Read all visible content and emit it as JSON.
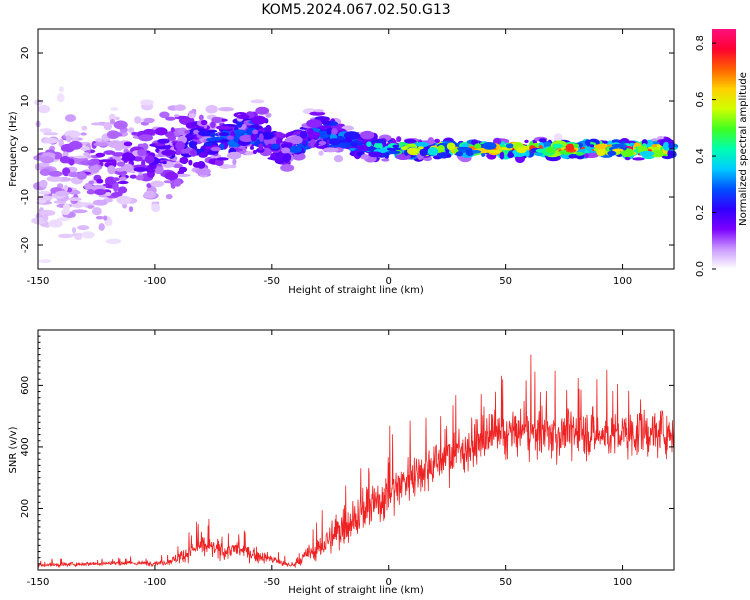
{
  "figure": {
    "title": "KOM5.2024.067.02.50.G13"
  },
  "chart_data": [
    {
      "type": "heatmap",
      "title": "KOM5.2024.067.02.50.G13",
      "xlabel": "Height of straight line (km)",
      "ylabel": "Frequency (Hz)",
      "xlim": [
        -150,
        122
      ],
      "ylim": [
        -25,
        25
      ],
      "x_ticks": [
        -150,
        -100,
        -50,
        0,
        50,
        100
      ],
      "y_ticks": [
        -20,
        -10,
        0,
        10,
        20
      ],
      "colorbar": {
        "label": "Normalized spectral amplitude",
        "range": [
          0.0,
          0.85
        ],
        "ticks": [
          0.0,
          0.2,
          0.4,
          0.6,
          0.8
        ],
        "colormap": [
          "#ffffff",
          "#cc99ff",
          "#7a00ff",
          "#3000ff",
          "#0050ff",
          "#00ccff",
          "#00ffb0",
          "#40ff20",
          "#d0ff00",
          "#ffd000",
          "#ff6000",
          "#ff0030",
          "#ff1080"
        ]
      },
      "ridge": [
        {
          "x": -150,
          "y": -3,
          "spread": 12,
          "amp": 0.08
        },
        {
          "x": -125,
          "y": -5,
          "spread": 10,
          "amp": 0.12
        },
        {
          "x": -100,
          "y": -2,
          "spread": 8,
          "amp": 0.15
        },
        {
          "x": -85,
          "y": 1,
          "spread": 6,
          "amp": 0.2
        },
        {
          "x": -70,
          "y": 2,
          "spread": 4,
          "amp": 0.25
        },
        {
          "x": -55,
          "y": 4,
          "spread": 4,
          "amp": 0.28
        },
        {
          "x": -45,
          "y": -1,
          "spread": 3,
          "amp": 0.22
        },
        {
          "x": -30,
          "y": 4,
          "spread": 3,
          "amp": 0.3
        },
        {
          "x": -15,
          "y": 1,
          "spread": 2.5,
          "amp": 0.3
        },
        {
          "x": 0,
          "y": 0,
          "spread": 1.5,
          "amp": 0.4
        },
        {
          "x": 15,
          "y": 0,
          "spread": 1.2,
          "amp": 0.6
        },
        {
          "x": 30,
          "y": 0,
          "spread": 1.2,
          "amp": 0.55
        },
        {
          "x": 50,
          "y": 0,
          "spread": 1.2,
          "amp": 0.65
        },
        {
          "x": 70,
          "y": 0,
          "spread": 1.2,
          "amp": 0.7
        },
        {
          "x": 90,
          "y": 0,
          "spread": 1.2,
          "amp": 0.6
        },
        {
          "x": 110,
          "y": 0,
          "spread": 1.2,
          "amp": 0.75
        },
        {
          "x": 122,
          "y": 0,
          "spread": 1.2,
          "amp": 0.5
        }
      ]
    },
    {
      "type": "line",
      "xlabel": "Height of straight line (km)",
      "ylabel": "SNR (v/v)",
      "xlim": [
        -150,
        122
      ],
      "ylim": [
        0,
        780
      ],
      "x_ticks": [
        -150,
        -100,
        -50,
        0,
        50,
        100
      ],
      "y_ticks": [
        200,
        400,
        600
      ],
      "color": "#ee2222",
      "envelope": {
        "x": [
          -150,
          -140,
          -130,
          -120,
          -110,
          -100,
          -95,
          -90,
          -85,
          -80,
          -75,
          -70,
          -65,
          -60,
          -55,
          -50,
          -45,
          -40,
          -35,
          -30,
          -25,
          -20,
          -15,
          -10,
          -5,
          0,
          5,
          10,
          15,
          20,
          25,
          30,
          35,
          40,
          50,
          60,
          70,
          80,
          90,
          100,
          110,
          122
        ],
        "mean": [
          15,
          18,
          20,
          22,
          22,
          22,
          25,
          40,
          60,
          80,
          70,
          60,
          70,
          55,
          45,
          35,
          20,
          15,
          50,
          70,
          100,
          140,
          170,
          190,
          220,
          250,
          280,
          310,
          330,
          350,
          370,
          390,
          400,
          420,
          440,
          450,
          440,
          450,
          440,
          440,
          445,
          450
        ],
        "spread": [
          8,
          10,
          10,
          12,
          12,
          12,
          15,
          30,
          40,
          50,
          45,
          40,
          45,
          40,
          30,
          25,
          15,
          15,
          40,
          60,
          80,
          100,
          110,
          120,
          120,
          120,
          120,
          110,
          110,
          110,
          110,
          110,
          110,
          110,
          115,
          115,
          120,
          120,
          120,
          115,
          115,
          110
        ]
      }
    }
  ]
}
